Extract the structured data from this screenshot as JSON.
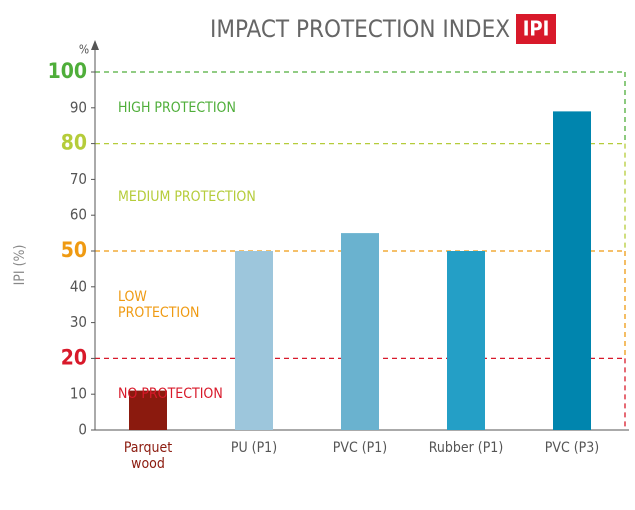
{
  "chart_data": {
    "type": "bar",
    "title": "IMPACT PROTECTION INDEX",
    "title_badge": "IPI",
    "y_label": "IPI (%)",
    "y_unit": "%",
    "categories": [
      "Parquet\nwood",
      "PU (P1)",
      "PVC (P1)",
      "Rubber (P1)",
      "PVC (P3)"
    ],
    "values": [
      11,
      50,
      55,
      50,
      89
    ],
    "colors": [
      "#8b1a0e",
      "#9dc6dc",
      "#6ab2cf",
      "#249fc6",
      "#0085ae"
    ],
    "ylim": [
      0,
      100
    ],
    "yticks": [
      0,
      10,
      20,
      30,
      40,
      50,
      60,
      70,
      80,
      90,
      100
    ],
    "zones": [
      {
        "value": 100,
        "color": "#4fae3a",
        "label": "HIGH PROTECTION"
      },
      {
        "value": 80,
        "color": "#b5cc3a",
        "label": "MEDIUM PROTECTION"
      },
      {
        "value": 50,
        "color": "#ef9a12",
        "label": "LOW\nPROTECTION"
      },
      {
        "value": 20,
        "color": "#d8192a",
        "label": "NO PROTECTION"
      }
    ]
  }
}
